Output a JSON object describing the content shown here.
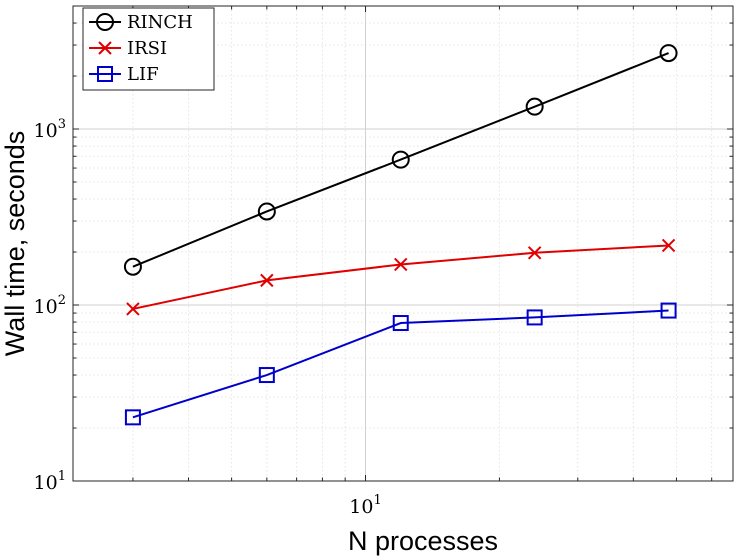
{
  "chart_data": {
    "type": "line",
    "xscale": "log",
    "yscale": "log",
    "xlabel": "N processes",
    "ylabel": "Wall time, seconds",
    "xlim": [
      2.2,
      67
    ],
    "ylim": [
      10,
      5000
    ],
    "x": [
      3,
      6,
      12,
      24,
      48
    ],
    "xticks": [
      {
        "value": 10,
        "base": "10",
        "exp": "1"
      }
    ],
    "yticks": [
      {
        "value": 10,
        "base": "10",
        "exp": "1"
      },
      {
        "value": 100,
        "base": "10",
        "exp": "2"
      },
      {
        "value": 1000,
        "base": "10",
        "exp": "3"
      }
    ],
    "grid": true,
    "legend_position": "top-left",
    "series": [
      {
        "name": "RINCH",
        "color": "#000000",
        "marker": "circle",
        "values": [
          165,
          340,
          670,
          1340,
          2700
        ]
      },
      {
        "name": "IRSI",
        "color": "#e00000",
        "marker": "x",
        "values": [
          95,
          138,
          170,
          198,
          218
        ]
      },
      {
        "name": "LIF",
        "color": "#0000cc",
        "marker": "square",
        "values": [
          23,
          40,
          79,
          85,
          93
        ]
      }
    ]
  }
}
